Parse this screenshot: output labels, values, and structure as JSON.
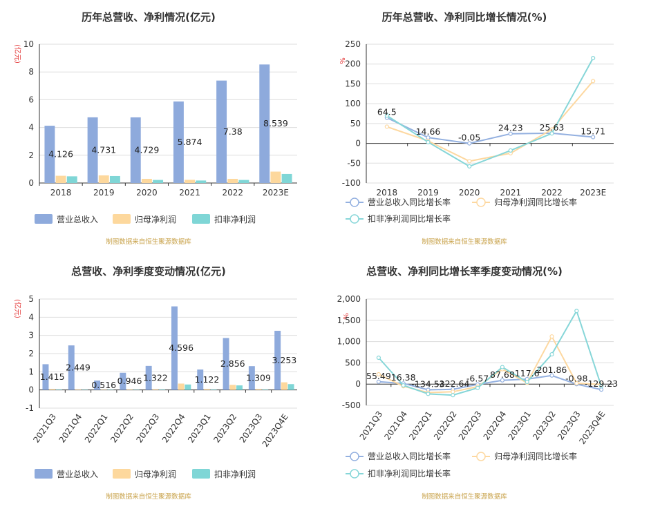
{
  "colors": {
    "revenue": "#8eaadc",
    "net_profit": "#fdd89d",
    "deducted_profit": "#7fd6d6",
    "revenue_line": "#93b0e0",
    "net_line": "#fdd8a0",
    "deducted_line": "#86d6d8"
  },
  "source_note": "制图数据来自恒生聚源数据库",
  "chart_data": [
    {
      "type": "bar",
      "title": "历年总营收、净利情况(亿元)",
      "unit": "(亿元)",
      "categories": [
        "2018",
        "2019",
        "2020",
        "2021",
        "2022",
        "2023E"
      ],
      "ylim": [
        0,
        10
      ],
      "yticks": [
        "0",
        "2",
        "4",
        "6",
        "8",
        "10"
      ],
      "series": [
        {
          "name": "营业总收入",
          "values": [
            4.126,
            4.731,
            4.729,
            5.874,
            7.38,
            8.539
          ],
          "labels": [
            "4.126",
            "4.731",
            "4.729",
            "5.874",
            "7.38",
            "8.539"
          ]
        },
        {
          "name": "归母净利润",
          "values": [
            0.52,
            0.55,
            0.3,
            0.23,
            0.3,
            0.82
          ]
        },
        {
          "name": "扣非净利润",
          "values": [
            0.48,
            0.5,
            0.22,
            0.18,
            0.22,
            0.65
          ]
        }
      ],
      "legend": "bottom"
    },
    {
      "type": "line",
      "title": "历年总营收、净利同比增长情况(%)",
      "unit": "%",
      "categories": [
        "2018",
        "2019",
        "2020",
        "2021",
        "2022",
        "2023E"
      ],
      "ylim": [
        -100,
        250
      ],
      "yticks": [
        "-100",
        "-50",
        "0",
        "50",
        "100",
        "150",
        "200",
        "250"
      ],
      "series": [
        {
          "name": "营业总收入同比增长率",
          "values": [
            64.5,
            14.66,
            -0.05,
            24.23,
            25.63,
            15.71
          ],
          "labels": [
            "64.5",
            "14.66",
            "-0.05",
            "24.23",
            "25.63",
            "15.71"
          ]
        },
        {
          "name": "归母净利润同比增长率",
          "values": [
            42,
            6,
            -45,
            -25,
            35,
            157
          ]
        },
        {
          "name": "扣非净利润同比增长率",
          "values": [
            70,
            3,
            -58,
            -18,
            25,
            215
          ]
        }
      ],
      "legend": "bottom"
    },
    {
      "type": "bar",
      "title": "总营收、净利季度变动情况(亿元)",
      "unit": "(亿元)",
      "categories": [
        "2021Q3",
        "2021Q4",
        "2022Q1",
        "2022Q2",
        "2022Q3",
        "2022Q4",
        "2023Q1",
        "2023Q2",
        "2023Q3",
        "2023Q4E"
      ],
      "ylim": [
        -1,
        5
      ],
      "yticks": [
        "-1",
        "0",
        "1",
        "2",
        "3",
        "4",
        "5"
      ],
      "series": [
        {
          "name": "营业总收入",
          "values": [
            1.415,
            2.449,
            0.516,
            0.946,
            1.322,
            4.596,
            1.122,
            2.856,
            1.309,
            3.253
          ],
          "labels": [
            "1.415",
            "2.449",
            "0.516",
            "0.946",
            "1.322",
            "4.596",
            "1.122",
            "2.856",
            "1.309",
            "3.253"
          ]
        },
        {
          "name": "归母净利润",
          "values": [
            0.05,
            0.03,
            0.02,
            0.03,
            0.04,
            0.35,
            0.05,
            0.28,
            0.05,
            0.42
          ]
        },
        {
          "name": "扣非净利润",
          "values": [
            0.03,
            0.02,
            0.01,
            0.02,
            0.03,
            0.3,
            0.03,
            0.25,
            0.03,
            0.32
          ]
        }
      ],
      "legend": "bottom"
    },
    {
      "type": "line",
      "title": "总营收、净利同比增长率季度变动情况(%)",
      "unit": "%",
      "categories": [
        "2021Q3",
        "2021Q4",
        "2022Q1",
        "2022Q2",
        "2022Q3",
        "2022Q4",
        "2023Q1",
        "2023Q2",
        "2023Q3",
        "2023Q4E"
      ],
      "ylim": [
        -500,
        2000
      ],
      "yticks": [
        "-500",
        "0",
        "500",
        "1,000",
        "1,500",
        "2,000"
      ],
      "series": [
        {
          "name": "营业总收入同比增长率",
          "values": [
            55.49,
            16.38,
            -134.53,
            -122.64,
            -6.57,
            87.68,
            117.6,
            201.86,
            -0.98,
            -129.23
          ],
          "labels": [
            "55.49",
            "16.38",
            "-134.53",
            "-122.64",
            "-6.57",
            "87.68",
            "117.6",
            "201.86",
            "-0.98",
            "-129.23"
          ]
        },
        {
          "name": "归母净利润同比增长率",
          "values": [
            230,
            -50,
            -200,
            -180,
            -60,
            350,
            30,
            1120,
            20,
            -10
          ]
        },
        {
          "name": "扣非净利润同比增长率",
          "values": [
            620,
            -30,
            -230,
            -260,
            -90,
            400,
            50,
            700,
            1720,
            -50
          ]
        }
      ],
      "legend": "bottom"
    }
  ]
}
